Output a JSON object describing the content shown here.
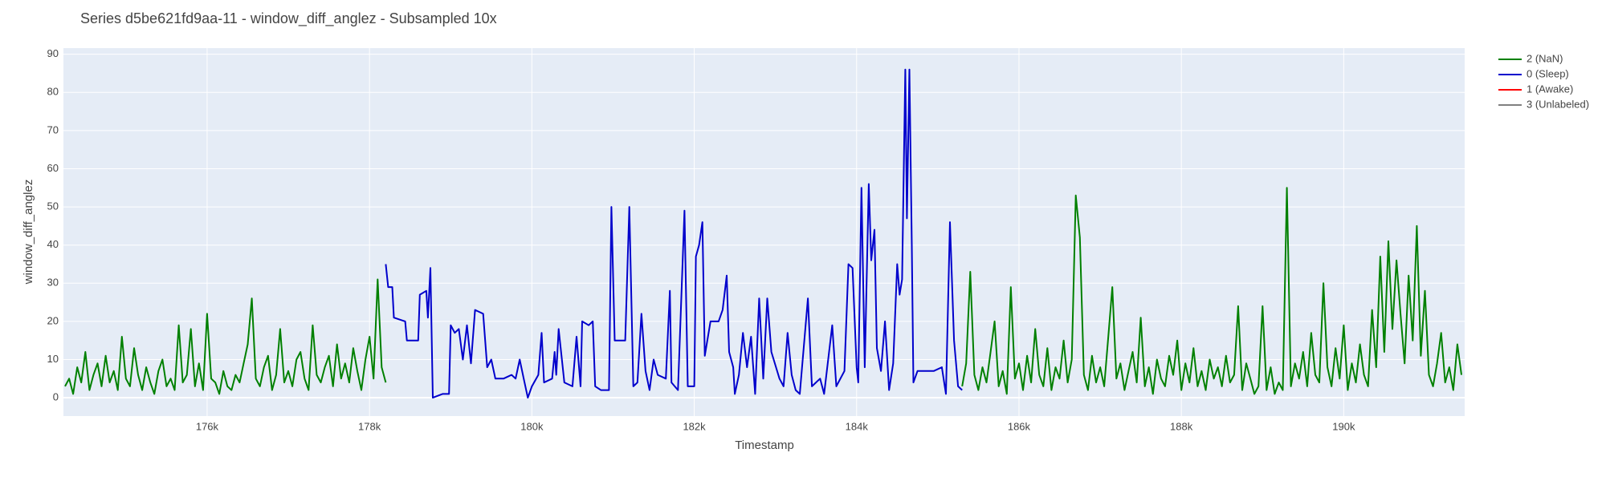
{
  "chart_data": {
    "type": "line",
    "title": "Series d5be621fd9aa-11 - window_diff_anglez - Subsampled 10x",
    "x_label": "Timestamp",
    "y_label": "window_diff_anglez",
    "xlim": [
      174230,
      191490
    ],
    "ylim": [
      -4.8,
      91.6
    ],
    "xticks": [
      {
        "value": 176000,
        "label": "176k"
      },
      {
        "value": 178000,
        "label": "178k"
      },
      {
        "value": 180000,
        "label": "180k"
      },
      {
        "value": 182000,
        "label": "182k"
      },
      {
        "value": 184000,
        "label": "184k"
      },
      {
        "value": 186000,
        "label": "186k"
      },
      {
        "value": 188000,
        "label": "188k"
      },
      {
        "value": 190000,
        "label": "190k"
      }
    ],
    "yticks": [
      0,
      10,
      20,
      30,
      40,
      50,
      60,
      70,
      80,
      90
    ],
    "grid": true,
    "legend": "right",
    "series": [
      {
        "name": "2 (NaN)",
        "color": "#008000",
        "x": [
          174250,
          174300,
          174350,
          174400,
          174450,
          174500,
          174550,
          174600,
          174650,
          174700,
          174750,
          174800,
          174850,
          174900,
          174950,
          175000,
          175050,
          175100,
          175150,
          175200,
          175250,
          175300,
          175350,
          175400,
          175450,
          175500,
          175550,
          175600,
          175650,
          175700,
          175750,
          175800,
          175850,
          175900,
          175950,
          176000,
          176050,
          176100,
          176150,
          176200,
          176250,
          176300,
          176350,
          176400,
          176450,
          176500,
          176550,
          176600,
          176650,
          176700,
          176750,
          176800,
          176850,
          176900,
          176950,
          177000,
          177050,
          177100,
          177150,
          177200,
          177250,
          177300,
          177350,
          177400,
          177450,
          177500,
          177550,
          177600,
          177650,
          177700,
          177750,
          177800,
          177850,
          177900,
          177950,
          178000,
          178050,
          178100,
          178150,
          178200
        ],
        "values": [
          3,
          5,
          1,
          8,
          4,
          12,
          2,
          6,
          9,
          3,
          11,
          4,
          7,
          2,
          16,
          5,
          3,
          13,
          6,
          2,
          8,
          4,
          1,
          7,
          10,
          3,
          5,
          2,
          19,
          4,
          6,
          18,
          3,
          9,
          2,
          22,
          5,
          4,
          1,
          7,
          3,
          2,
          6,
          4,
          9,
          14,
          26,
          5,
          3,
          8,
          11,
          2,
          6,
          18,
          4,
          7,
          3,
          10,
          12,
          5,
          2,
          19,
          6,
          4,
          8,
          11,
          3,
          14,
          5,
          9,
          4,
          13,
          7,
          2,
          10,
          16,
          5,
          31,
          8,
          4
        ]
      },
      {
        "name": "0 (Sleep)",
        "color": "#0000cc",
        "x": [
          178200,
          178230,
          178280,
          178300,
          178440,
          178460,
          178600,
          178620,
          178700,
          178720,
          178750,
          178780,
          178900,
          178980,
          179000,
          179050,
          179100,
          179150,
          179200,
          179250,
          179300,
          179400,
          179450,
          179500,
          179550,
          179650,
          179750,
          179800,
          179850,
          179900,
          179950,
          180000,
          180080,
          180120,
          180150,
          180250,
          180280,
          180300,
          180330,
          180400,
          180500,
          180550,
          180600,
          180620,
          180700,
          180750,
          180780,
          180850,
          180950,
          180980,
          181020,
          181150,
          181200,
          181250,
          181300,
          181350,
          181400,
          181450,
          181500,
          181550,
          181650,
          181700,
          181720,
          181800,
          181880,
          181920,
          182000,
          182020,
          182060,
          182100,
          182130,
          182200,
          182300,
          182350,
          182400,
          182430,
          182480,
          182500,
          182550,
          182600,
          182650,
          182700,
          182750,
          182800,
          182850,
          182900,
          182950,
          183050,
          183100,
          183150,
          183200,
          183250,
          183300,
          183400,
          183450,
          183550,
          183600,
          183700,
          183750,
          183850,
          183900,
          183950,
          184000,
          184020,
          184060,
          184100,
          184150,
          184180,
          184220,
          184250,
          184300,
          184350,
          184400,
          184450,
          184500,
          184530,
          184560,
          184600,
          184620,
          184650,
          184680,
          184700,
          184750,
          184850,
          184950,
          185050,
          185100,
          185150,
          185200,
          185250,
          185300
        ],
        "values": [
          35,
          29,
          29,
          21,
          20,
          15,
          15,
          27,
          28,
          21,
          34,
          0,
          1,
          1,
          19,
          17,
          18,
          10,
          19,
          9,
          23,
          22,
          8,
          10,
          5,
          5,
          6,
          5,
          10,
          5,
          0,
          3,
          6,
          17,
          4,
          5,
          12,
          6,
          18,
          4,
          3,
          16,
          3,
          20,
          19,
          20,
          3,
          2,
          2,
          50,
          15,
          15,
          50,
          3,
          4,
          22,
          7,
          2,
          10,
          6,
          5,
          28,
          4,
          2,
          49,
          3,
          3,
          37,
          40,
          46,
          11,
          20,
          20,
          23,
          32,
          12,
          8,
          1,
          6,
          17,
          8,
          16,
          1,
          26,
          5,
          26,
          12,
          5,
          3,
          17,
          6,
          2,
          1,
          26,
          3,
          5,
          1,
          19,
          3,
          7,
          35,
          34,
          8,
          4,
          55,
          8,
          56,
          36,
          44,
          13,
          7,
          20,
          2,
          9,
          35,
          27,
          31,
          86,
          47,
          86,
          40,
          4,
          7,
          7,
          7,
          8,
          1,
          46,
          15,
          3,
          2
        ]
      },
      {
        "name": "1 (Awake)",
        "color": "#ff0000",
        "x": [],
        "values": []
      },
      {
        "name": "2 (NaN)",
        "color": "#008000",
        "x": [
          185300,
          185350,
          185400,
          185450,
          185500,
          185550,
          185600,
          185650,
          185700,
          185750,
          185800,
          185850,
          185900,
          185950,
          186000,
          186050,
          186100,
          186150,
          186200,
          186250,
          186300,
          186350,
          186400,
          186450,
          186500,
          186550,
          186600,
          186650,
          186700,
          186750,
          186800,
          186850,
          186900,
          186950,
          187000,
          187050,
          187100,
          187150,
          187200,
          187250,
          187300,
          187350,
          187400,
          187450,
          187500,
          187550,
          187600,
          187650,
          187700,
          187750,
          187800,
          187850,
          187900,
          187950,
          188000,
          188050,
          188100,
          188150,
          188200,
          188250,
          188300,
          188350,
          188400,
          188450,
          188500,
          188550,
          188600,
          188650,
          188700,
          188750,
          188800,
          188850,
          188900,
          188950,
          189000,
          189050,
          189100,
          189150,
          189200,
          189250,
          189300,
          189350,
          189400,
          189450,
          189500,
          189550,
          189600,
          189650,
          189700,
          189750,
          189800,
          189850,
          189900,
          189950,
          190000,
          190050,
          190100,
          190150,
          190200,
          190250,
          190300,
          190350,
          190400,
          190450,
          190500,
          190550,
          190600,
          190650,
          190700,
          190750,
          190800,
          190850,
          190900,
          190950,
          191000,
          191050,
          191100,
          191150,
          191200,
          191250,
          191300,
          191350,
          191400,
          191450
        ],
        "values": [
          3,
          9,
          33,
          6,
          2,
          8,
          4,
          12,
          20,
          3,
          7,
          1,
          29,
          5,
          9,
          2,
          11,
          4,
          18,
          6,
          3,
          13,
          2,
          8,
          5,
          15,
          4,
          10,
          53,
          42,
          6,
          2,
          11,
          4,
          8,
          3,
          16,
          29,
          5,
          9,
          2,
          7,
          12,
          4,
          21,
          3,
          8,
          1,
          10,
          5,
          3,
          11,
          6,
          15,
          2,
          9,
          4,
          13,
          3,
          7,
          2,
          10,
          5,
          8,
          3,
          11,
          4,
          6,
          24,
          2,
          9,
          5,
          1,
          3,
          24,
          2,
          8,
          1,
          4,
          2,
          55,
          3,
          9,
          5,
          12,
          3,
          17,
          6,
          4,
          30,
          8,
          3,
          13,
          5,
          19,
          2,
          9,
          4,
          14,
          6,
          3,
          23,
          8,
          37,
          12,
          41,
          18,
          36,
          22,
          9,
          32,
          15,
          45,
          11,
          28,
          6,
          3,
          9,
          17,
          4,
          8,
          2,
          14,
          6
        ]
      },
      {
        "name": "3 (Unlabeled)",
        "color": "#808080",
        "x": [],
        "values": []
      }
    ]
  }
}
